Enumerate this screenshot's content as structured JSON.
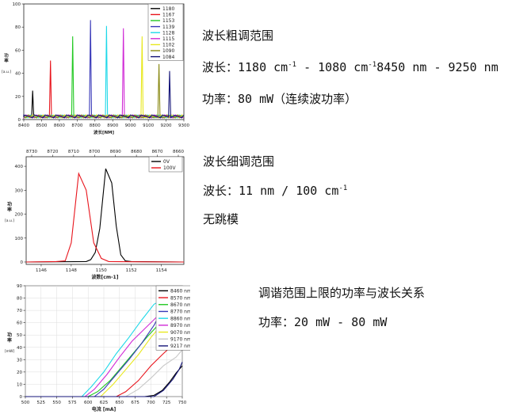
{
  "texts": {
    "t1_title": "波长粗调范围",
    "t1_wave_prefix": "波长：1180 cm",
    "t1_sup1": "-1",
    "t1_wave_mid": " - 1080 cm",
    "t1_sup2": "-1",
    "t1_wave_nm": "8450 nm - 9250 nm",
    "t1_power": "功率：80 mW（连续波功率）",
    "t2_title": "波长细调范围",
    "t2_wave_prefix": "波长：11 nm / 100 cm",
    "t2_sup": "-1",
    "t2_nohop": "无跳模",
    "t3_title": "调谐范围上限的功率与波长关系",
    "t3_power": "功率：20 mW - 80 mW"
  },
  "chart_data": [
    {
      "type": "line",
      "title": "",
      "xlabel": "波长[NM]",
      "ylabel": "功率",
      "ylabel_unit": "[a.u.]",
      "xlim": [
        8400,
        9300
      ],
      "ylim": [
        0,
        100
      ],
      "xticks": [
        8400,
        8500,
        8600,
        8700,
        8800,
        8900,
        9000,
        9100,
        9200,
        9300
      ],
      "xtick_labels": [
        "8400",
        "8500",
        "8600",
        "8700",
        "8800",
        "8900",
        "9000",
        "9100",
        "9200",
        "9300"
      ],
      "yticks": [
        0,
        20,
        40,
        60,
        80,
        100
      ],
      "ytick_labels": [
        "0",
        "20",
        "40",
        "60",
        "80",
        "100"
      ],
      "legend_position": "top-right",
      "series": [
        {
          "name": "1180",
          "color": "#000000",
          "peak_x": 8450,
          "peak_y": 25
        },
        {
          "name": "1167",
          "color": "#e8141c",
          "peak_x": 8550,
          "peak_y": 51
        },
        {
          "name": "1153",
          "color": "#23c923",
          "peak_x": 8675,
          "peak_y": 72
        },
        {
          "name": "1139",
          "color": "#3838b8",
          "peak_x": 8775,
          "peak_y": 86
        },
        {
          "name": "1128",
          "color": "#1ed8e8",
          "peak_x": 8865,
          "peak_y": 81
        },
        {
          "name": "1115",
          "color": "#d02ad6",
          "peak_x": 8960,
          "peak_y": 79
        },
        {
          "name": "1102",
          "color": "#e8e81e",
          "peak_x": 9065,
          "peak_y": 72
        },
        {
          "name": "1090",
          "color": "#8a8a14",
          "peak_x": 9160,
          "peak_y": 48
        },
        {
          "name": "1084",
          "color": "#141478",
          "peak_x": 9220,
          "peak_y": 42
        }
      ]
    },
    {
      "type": "line",
      "title": "",
      "xlabel": "波数[cm-1]",
      "ylabel": "功率",
      "ylabel_unit": "[a.u.]",
      "top_axis_label": "",
      "xlim": [
        1145,
        1155.5
      ],
      "ylim": [
        -10,
        440
      ],
      "xticks": [
        1146,
        1148,
        1150,
        1152,
        1154
      ],
      "xtick_labels": [
        "1146",
        "1148",
        "1150",
        "1152",
        "1154"
      ],
      "top_ticks": [
        8730,
        8720,
        8710,
        8700,
        8690,
        8680,
        8670,
        8660
      ],
      "yticks": [
        0,
        100,
        200,
        300,
        400
      ],
      "ytick_labels": [
        "0",
        "100",
        "200",
        "300",
        "400"
      ],
      "legend_position": "top-right",
      "series": [
        {
          "name": "0V",
          "color": "#000000",
          "x": [
            1145,
            1149.0,
            1149.3,
            1149.6,
            1149.9,
            1150.3,
            1150.7,
            1151.0,
            1151.3,
            1151.6,
            1152.0,
            1155.5
          ],
          "y": [
            0,
            2,
            10,
            40,
            140,
            390,
            330,
            150,
            30,
            5,
            2,
            0
          ]
        },
        {
          "name": "100V",
          "color": "#e8141c",
          "x": [
            1145,
            1147.0,
            1147.6,
            1148.0,
            1148.5,
            1149.0,
            1149.5,
            1150.0,
            1150.5,
            1152.0,
            1155.5
          ],
          "y": [
            0,
            2,
            5,
            80,
            370,
            300,
            80,
            15,
            2,
            1,
            0
          ]
        }
      ]
    },
    {
      "type": "line",
      "title": "",
      "xlabel": "电流 [mA]",
      "ylabel": "功率",
      "ylabel_unit": "[mW]",
      "xlim": [
        500,
        750
      ],
      "ylim": [
        0,
        90
      ],
      "xticks": [
        500,
        525,
        550,
        575,
        600,
        625,
        650,
        675,
        700,
        725,
        750
      ],
      "xtick_labels": [
        "500",
        "525",
        "550",
        "575",
        "600",
        "625",
        "650",
        "675",
        "700",
        "725",
        "750"
      ],
      "yticks": [
        0,
        10,
        20,
        30,
        40,
        50,
        60,
        70,
        80,
        90
      ],
      "ytick_labels": [
        "0",
        "10",
        "20",
        "30",
        "40",
        "50",
        "60",
        "70",
        "80",
        "90"
      ],
      "legend_position": "top-right",
      "series": [
        {
          "name": "8460 nm",
          "color": "#000000",
          "x": [
            500,
            690,
            705,
            718,
            730,
            740,
            750
          ],
          "y": [
            0,
            0,
            1,
            5,
            12,
            19,
            25
          ]
        },
        {
          "name": "8570 nm",
          "color": "#e8141c",
          "x": [
            500,
            645,
            660,
            680,
            700,
            720,
            735,
            750
          ],
          "y": [
            0,
            0,
            4,
            13,
            25,
            35,
            42,
            52
          ]
        },
        {
          "name": "8670 nm",
          "color": "#23c923",
          "x": [
            500,
            600,
            615,
            635,
            655,
            675,
            695,
            715,
            735,
            750
          ],
          "y": [
            0,
            0,
            4,
            13,
            25,
            37,
            49,
            60,
            68,
            76
          ]
        },
        {
          "name": "8770 nm",
          "color": "#3838b8",
          "x": [
            500,
            610,
            625,
            645,
            665,
            685,
            705,
            720,
            740,
            750
          ],
          "y": [
            0,
            0,
            6,
            18,
            30,
            43,
            58,
            72,
            84,
            88
          ]
        },
        {
          "name": "8860 nm",
          "color": "#1ed8e8",
          "x": [
            500,
            590,
            605,
            625,
            645,
            665,
            685,
            705,
            725,
            745,
            750
          ],
          "y": [
            0,
            0,
            8,
            20,
            35,
            48,
            62,
            75,
            80,
            86,
            88
          ]
        },
        {
          "name": "8970 nm",
          "color": "#d02ad6",
          "x": [
            500,
            595,
            610,
            630,
            650,
            670,
            690,
            710,
            730,
            750
          ],
          "y": [
            0,
            0,
            6,
            18,
            32,
            45,
            55,
            65,
            72,
            80
          ]
        },
        {
          "name": "9070 nm",
          "color": "#e8e81e",
          "x": [
            500,
            620,
            640,
            660,
            680,
            700,
            720,
            740,
            750
          ],
          "y": [
            0,
            0,
            10,
            22,
            34,
            48,
            60,
            70,
            76
          ]
        },
        {
          "name": "9170 nm",
          "color": "#c8c8c8",
          "x": [
            500,
            660,
            680,
            700,
            720,
            740,
            750
          ],
          "y": [
            0,
            0,
            6,
            15,
            25,
            32,
            38
          ]
        },
        {
          "name": "9217 nm",
          "color": "#141478",
          "x": [
            500,
            705,
            720,
            735,
            745,
            750
          ],
          "y": [
            0,
            0,
            5,
            14,
            22,
            28
          ]
        }
      ]
    }
  ]
}
